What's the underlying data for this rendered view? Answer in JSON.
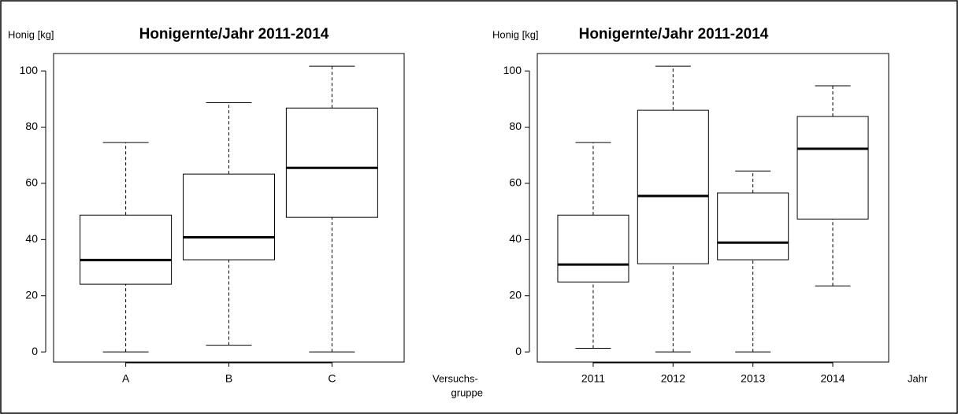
{
  "chart_data": [
    {
      "type": "box",
      "title": "Honigernte/Jahr 2011-2014",
      "y_label": "Honig [kg]",
      "x_label_lines": [
        "Versuchs-",
        "gruppe"
      ],
      "categories": [
        "A",
        "B",
        "C"
      ],
      "min": [
        0,
        2.4,
        0
      ],
      "q1": [
        24.1,
        32.8,
        47.9
      ],
      "median": [
        32.7,
        40.8,
        65.5
      ],
      "q3": [
        48.7,
        63.3,
        86.8
      ],
      "max": [
        74.5,
        88.7,
        101.7
      ],
      "ylim": [
        -3.6,
        106.2
      ],
      "yticks": [
        0,
        20,
        40,
        60,
        80,
        100
      ],
      "color": "#000000"
    },
    {
      "type": "box",
      "title": "Honigernte/Jahr 2011-2014",
      "y_label": "Honig [kg]",
      "x_label_lines": [
        "Jahr"
      ],
      "categories": [
        "2011",
        "2012",
        "2013",
        "2014"
      ],
      "min": [
        1.3,
        0,
        0,
        23.5
      ],
      "q1": [
        24.9,
        31.4,
        32.8,
        47.3
      ],
      "median": [
        31.1,
        55.5,
        38.9,
        72.3
      ],
      "q3": [
        48.7,
        86.0,
        56.6,
        83.8
      ],
      "max": [
        74.5,
        101.7,
        64.4,
        94.7
      ],
      "ylim": [
        -3.6,
        106.2
      ],
      "yticks": [
        0,
        20,
        40,
        60,
        80,
        100
      ],
      "color": "#000000"
    }
  ]
}
